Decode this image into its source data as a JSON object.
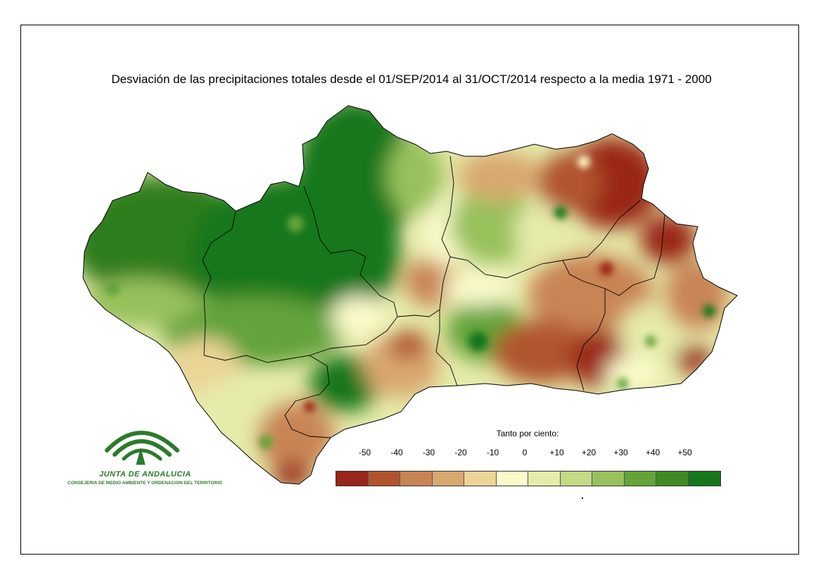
{
  "map": {
    "title": "Desviación de las precipitaciones totales desde el 01/SEP/2014 al 31/OCT/2014 respecto a la media 1971 - 2000",
    "region": "Andalucía",
    "west_tone": "wet",
    "east_tone": "dry"
  },
  "logo": {
    "name": "JUNTA DE ANDALUCIA",
    "subtitle": "CONSEJERIA DE MEDIO AMBIENTE Y ORDENACION DEL TERRITORIO",
    "color": "#2c7a2c"
  },
  "legend": {
    "title": "Tanto por ciento:",
    "labels": [
      "-50",
      "-40",
      "-30",
      "-20",
      "-10",
      "0",
      "+10",
      "+20",
      "+30",
      "+40",
      "+50"
    ],
    "colors": [
      "#9a2519",
      "#b0552f",
      "#c98454",
      "#d9a86f",
      "#ebd496",
      "#fafaca",
      "#e6ebaa",
      "#c4da86",
      "#98c15c",
      "#63a33a",
      "#3f8a22",
      "#15771a"
    ]
  }
}
